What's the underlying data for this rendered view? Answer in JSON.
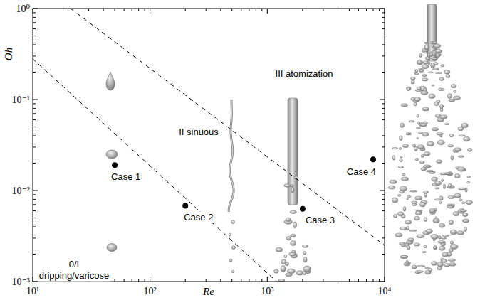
{
  "chart_data": {
    "type": "scatter",
    "x_label": "Re",
    "y_label": "Oh",
    "log": true,
    "grid": false,
    "xlim": [
      10,
      10000
    ],
    "ylim": [
      0.001,
      1
    ],
    "xticks": [
      {
        "value": 10,
        "label": "10¹"
      },
      {
        "value": 100,
        "label": "10²"
      },
      {
        "value": 1000,
        "label": "10³"
      },
      {
        "value": 10000,
        "label": "10⁴"
      }
    ],
    "yticks": [
      {
        "value": 0.001,
        "label": "10⁻³"
      },
      {
        "value": 0.01,
        "label": "10⁻²"
      },
      {
        "value": 0.1,
        "label": "10⁻¹"
      },
      {
        "value": 1,
        "label": "10⁰"
      }
    ],
    "series": [
      {
        "type": "scatter",
        "marker": "circle",
        "color": "#000000",
        "x": [
          50,
          200,
          2000,
          8000
        ],
        "values": [
          0.019,
          0.0068,
          0.0063,
          0.022
        ],
        "labels": [
          "Case 1",
          "Case 2",
          "Case 3",
          "Case 4"
        ]
      },
      {
        "type": "line",
        "line_style": "dashed",
        "color": "#000000",
        "x": [
          21,
          10000
        ],
        "values": [
          1,
          0.0025
        ]
      },
      {
        "type": "line",
        "line_style": "dashed",
        "color": "#000000",
        "x": [
          10,
          1200
        ],
        "values": [
          0.28,
          0.001
        ]
      }
    ],
    "annotations": [
      {
        "text": [
          "0/I",
          "dripping/varicose"
        ]
      },
      {
        "text": "II sinuous"
      },
      {
        "text": "III atomization"
      }
    ]
  }
}
